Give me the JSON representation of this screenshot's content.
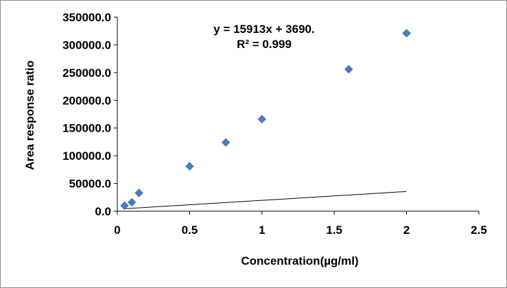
{
  "chart_data": {
    "type": "scatter",
    "xlabel": "Concentration(µg/ml)",
    "ylabel": "Area response ratio",
    "xlim": [
      0,
      2.5
    ],
    "ylim": [
      0,
      350000
    ],
    "x_ticks": [
      "0",
      "0.5",
      "1",
      "1.5",
      "2",
      "2.5"
    ],
    "x_tick_values": [
      0,
      0.5,
      1,
      1.5,
      2,
      2.5
    ],
    "y_ticks": [
      "0.0",
      "50000.0",
      "100000.0",
      "150000.0",
      "200000.0",
      "250000.0",
      "300000.0",
      "350000.0"
    ],
    "y_tick_values": [
      0,
      50000,
      100000,
      150000,
      200000,
      250000,
      300000,
      350000
    ],
    "grid": false,
    "marker": "diamond",
    "marker_color": "#4a7ebb",
    "series": [
      {
        "x": [
          0.05,
          0.1,
          0.15,
          0.5,
          0.75,
          1.0,
          1.6,
          2.0
        ],
        "y": [
          10000,
          16000,
          33000,
          81000,
          124000,
          166000,
          256000,
          321000
        ]
      }
    ],
    "trendline": {
      "slope": 15913,
      "intercept": 3690,
      "x_range": [
        0.05,
        2.0
      ]
    },
    "annotations": {
      "equation": "y = 15913x + 3690.",
      "r_squared": "R² = 0.999"
    }
  }
}
